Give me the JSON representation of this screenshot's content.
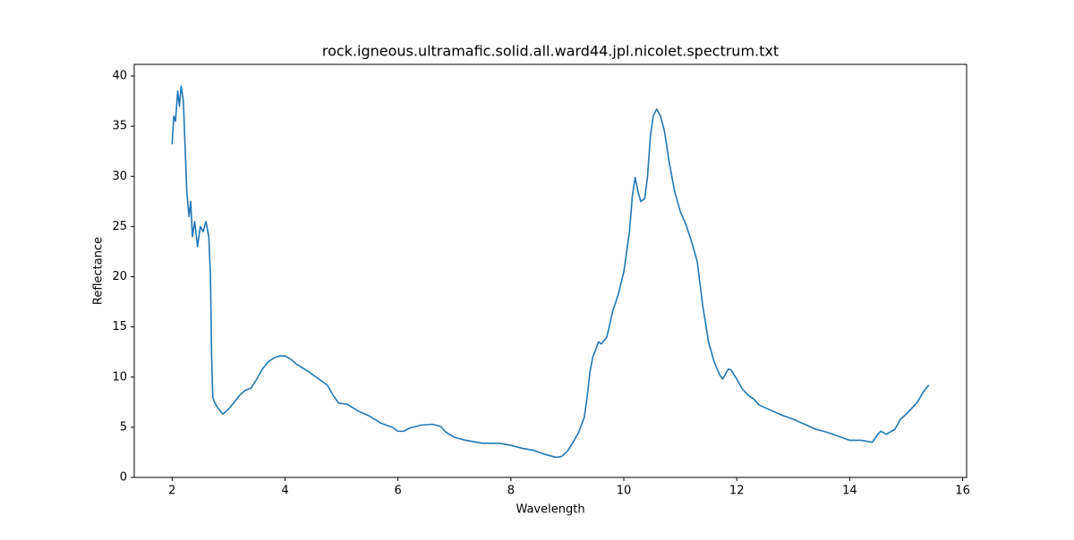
{
  "chart_data": {
    "type": "line",
    "title": "rock.igneous.ultramafic.solid.all.ward44.jpl.nicolet.spectrum.txt",
    "xlabel": "Wavelength",
    "ylabel": "Reflectance",
    "x": [
      2.0,
      2.03,
      2.06,
      2.1,
      2.13,
      2.16,
      2.2,
      2.23,
      2.26,
      2.3,
      2.33,
      2.36,
      2.4,
      2.45,
      2.5,
      2.55,
      2.6,
      2.65,
      2.68,
      2.7,
      2.72,
      2.75,
      2.8,
      2.9,
      3.0,
      3.1,
      3.2,
      3.3,
      3.4,
      3.5,
      3.6,
      3.7,
      3.8,
      3.9,
      4.0,
      4.1,
      4.2,
      4.4,
      4.6,
      4.75,
      4.85,
      4.95,
      5.1,
      5.3,
      5.5,
      5.7,
      5.9,
      6.0,
      6.1,
      6.2,
      6.4,
      6.6,
      6.75,
      6.85,
      7.0,
      7.2,
      7.5,
      7.8,
      8.0,
      8.2,
      8.4,
      8.6,
      8.8,
      8.9,
      9.0,
      9.1,
      9.2,
      9.3,
      9.35,
      9.4,
      9.45,
      9.5,
      9.55,
      9.6,
      9.7,
      9.8,
      9.9,
      10.0,
      10.1,
      10.15,
      10.2,
      10.25,
      10.3,
      10.37,
      10.42,
      10.47,
      10.52,
      10.58,
      10.65,
      10.72,
      10.8,
      10.9,
      11.0,
      11.1,
      11.2,
      11.3,
      11.4,
      11.5,
      11.6,
      11.7,
      11.75,
      11.85,
      11.9,
      12.0,
      12.1,
      12.2,
      12.3,
      12.4,
      12.6,
      12.8,
      13.0,
      13.2,
      13.4,
      13.6,
      13.8,
      14.0,
      14.2,
      14.3,
      14.4,
      14.5,
      14.55,
      14.65,
      14.8,
      14.9,
      15.0,
      15.1,
      15.2,
      15.3,
      15.4
    ],
    "series": [
      {
        "name": "Reflectance",
        "color": "#1f77b4",
        "values": [
          33.2,
          36,
          35.5,
          38.5,
          37,
          39,
          37.5,
          33,
          28.5,
          26,
          27.5,
          24,
          25.5,
          23,
          25,
          24.5,
          25.5,
          24,
          20,
          12,
          8,
          7.5,
          7,
          6.3,
          6.8,
          7.5,
          8.2,
          8.7,
          8.9,
          9.8,
          10.8,
          11.5,
          11.9,
          12.1,
          12.1,
          11.8,
          11.3,
          10.6,
          9.8,
          9.2,
          8.2,
          7.4,
          7.3,
          6.6,
          6.1,
          5.4,
          5.0,
          4.6,
          4.6,
          4.9,
          5.2,
          5.3,
          5.1,
          4.5,
          4.0,
          3.7,
          3.4,
          3.4,
          3.2,
          2.9,
          2.7,
          2.3,
          2.0,
          2.1,
          2.6,
          3.5,
          4.5,
          6.0,
          8.0,
          10.5,
          12.0,
          12.7,
          13.5,
          13.3,
          14.0,
          16.5,
          18.2,
          20.5,
          24.5,
          28,
          29.9,
          28.5,
          27.5,
          27.8,
          30,
          34,
          36,
          36.7,
          36,
          34.5,
          31.5,
          28.5,
          26.5,
          25.2,
          23.5,
          21.5,
          17,
          13.5,
          11.5,
          10.2,
          9.8,
          10.8,
          10.7,
          9.8,
          8.8,
          8.2,
          7.8,
          7.2,
          6.7,
          6.2,
          5.8,
          5.3,
          4.8,
          4.5,
          4.1,
          3.7,
          3.7,
          3.6,
          3.5,
          4.3,
          4.6,
          4.3,
          4.8,
          5.8,
          6.3,
          6.9,
          7.5,
          8.5,
          9.2
        ]
      }
    ],
    "xlim": [
      1.33,
      16.07
    ],
    "ylim": [
      0,
      41.16
    ],
    "xticks": [
      2,
      4,
      6,
      8,
      10,
      12,
      14,
      16
    ],
    "yticks": [
      0,
      5,
      10,
      15,
      20,
      25,
      30,
      35,
      40
    ]
  }
}
